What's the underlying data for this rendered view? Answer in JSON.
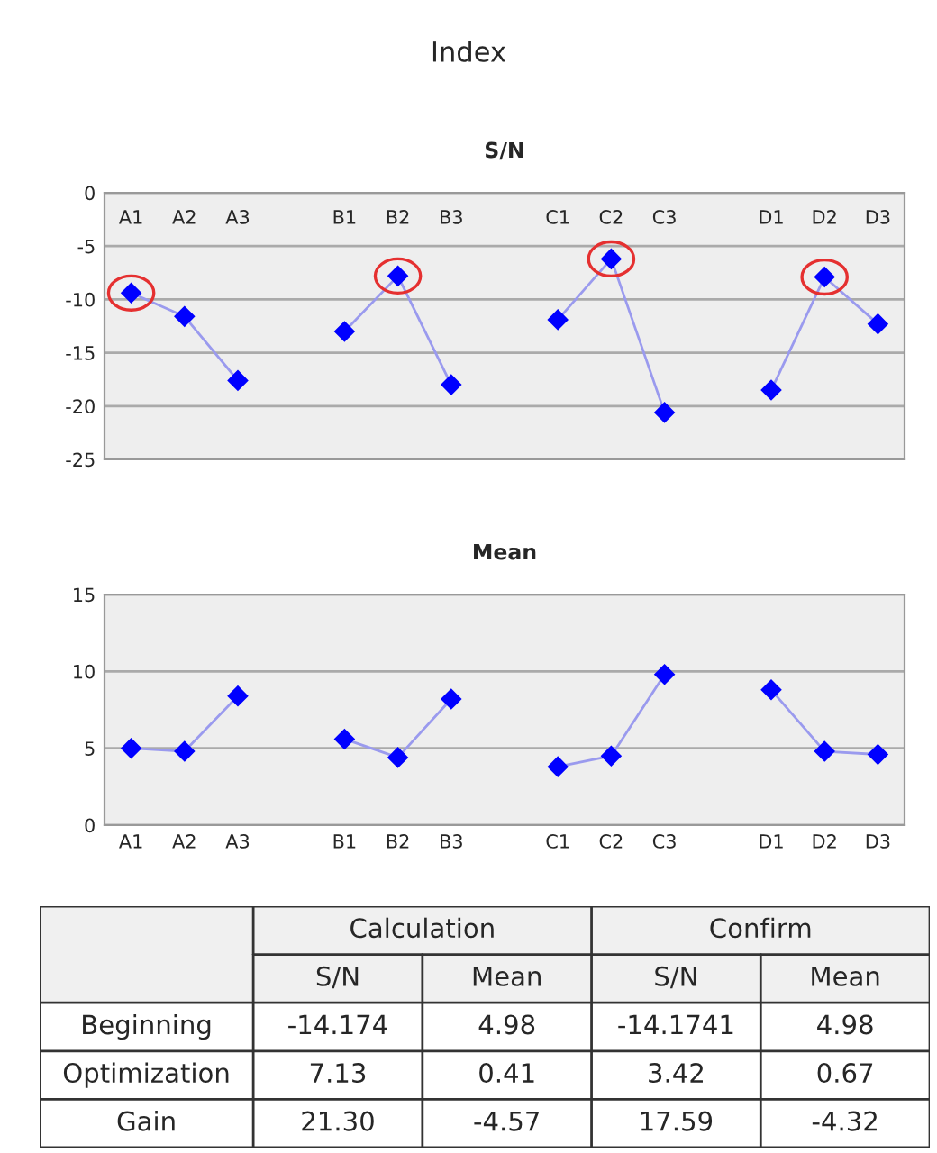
{
  "chart_data": [
    {
      "type": "other",
      "title": "Index"
    },
    {
      "type": "line",
      "title": "S/N",
      "categories": [
        "A1",
        "A2",
        "A3",
        null,
        "B1",
        "B2",
        "B3",
        null,
        "C1",
        "C2",
        "C3",
        null,
        "D1",
        "D2",
        "D3"
      ],
      "series": [
        {
          "color": "#0000ff",
          "values": [
            -9.4,
            -11.6,
            -17.6,
            null,
            -13.0,
            -7.8,
            -18.0,
            null,
            -11.9,
            -6.2,
            -20.6,
            null,
            -18.5,
            -7.9,
            -12.3
          ]
        }
      ],
      "ylim": [
        -25,
        0
      ],
      "yticks": [
        -25,
        -20,
        -15,
        -10,
        -5,
        0
      ],
      "grid": "y",
      "marker": "diamond",
      "line_style": "solid"
    },
    {
      "type": "line",
      "title": "Mean",
      "categories": [
        "A1",
        "A2",
        "A3",
        null,
        "B1",
        "B2",
        "B3",
        null,
        "C1",
        "C2",
        "C3",
        null,
        "D1",
        "D2",
        "D3"
      ],
      "series": [
        {
          "color": "#0000ff",
          "values": [
            5.0,
            4.8,
            8.4,
            null,
            5.6,
            4.4,
            8.2,
            null,
            3.8,
            4.5,
            9.8,
            null,
            8.8,
            4.8,
            4.6
          ]
        }
      ],
      "ylim": [
        0,
        15
      ],
      "yticks": [
        0,
        5,
        10,
        15
      ],
      "grid": "y",
      "marker": "diamond",
      "line_style": "solid"
    },
    {
      "type": "other",
      "annotations": [
        "Calculation",
        "Confirm",
        "S/N",
        "Mean",
        "S/N",
        "Mean",
        "Beginning",
        "-14.174",
        "4.98",
        "-14.1741",
        "4.98",
        "Optimization",
        "7.13",
        "0.41",
        "3.42",
        "0.67",
        "Gain",
        "21.30",
        "-4.57",
        "17.59",
        "-4.32"
      ]
    }
  ]
}
